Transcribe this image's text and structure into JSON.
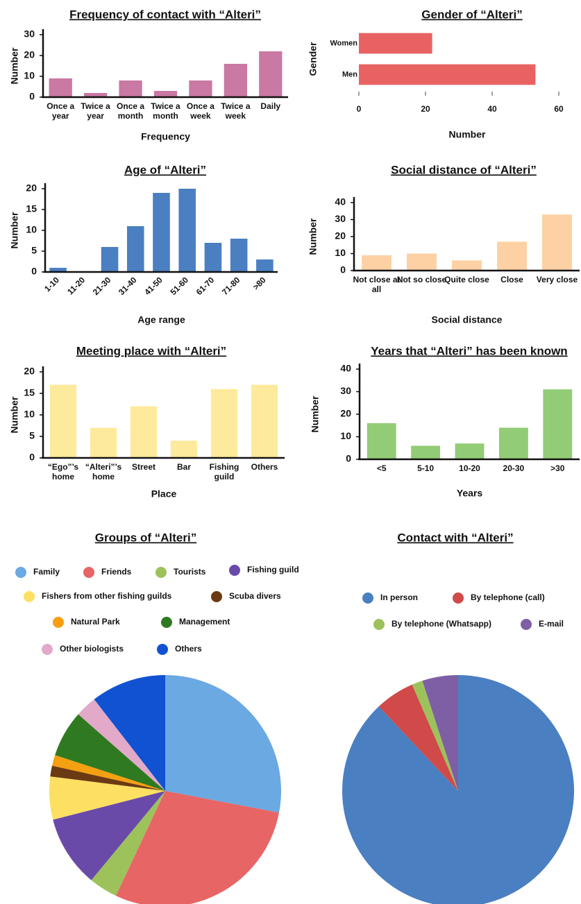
{
  "chart_data": [
    {
      "type": "bar",
      "title": "Frequency of contact with “Alteri”",
      "xlabel": "Frequency",
      "ylabel": "Number",
      "categories": [
        "Once a year",
        "Twice a year",
        "Once a month",
        "Twice a month",
        "Once a week",
        "Twice a week",
        "Daily"
      ],
      "values": [
        9,
        2,
        8,
        3,
        8,
        16,
        22
      ],
      "color": "#c979a3",
      "ylim": [
        0,
        30
      ],
      "yticks": [
        0,
        10,
        20,
        30
      ]
    },
    {
      "type": "barh",
      "title": "Gender of “Alteri”",
      "xlabel": "Number",
      "ylabel": "Gender",
      "categories": [
        "Women",
        "Men"
      ],
      "values": [
        22,
        53
      ],
      "color": "#e96262",
      "xlim": [
        0,
        65
      ],
      "xticks": [
        0,
        20,
        40,
        60
      ]
    },
    {
      "type": "bar",
      "title": "Age of “Alteri”",
      "xlabel": "Age range",
      "ylabel": "Number",
      "categories": [
        "1-10",
        "11-20",
        "21-30",
        "31-40",
        "41-50",
        "51-60",
        "61-70",
        "71-80",
        ">80"
      ],
      "values": [
        1,
        0,
        6,
        11,
        19,
        20,
        7,
        8,
        3
      ],
      "color": "#4a7fc1",
      "ylim": [
        0,
        20
      ],
      "yticks": [
        0,
        5,
        10,
        15,
        20
      ],
      "xtick_rotation": 45
    },
    {
      "type": "bar",
      "title": "Social distance of “Alteri”",
      "xlabel": "Social distance",
      "ylabel": "Number",
      "categories": [
        "Not close at all",
        "Not so close",
        "Quite close",
        "Close",
        "Very close"
      ],
      "values": [
        9,
        10,
        6,
        17,
        33
      ],
      "color": "#fdd1a4",
      "ylim": [
        0,
        40
      ],
      "yticks": [
        0,
        10,
        20,
        30,
        40
      ]
    },
    {
      "type": "bar",
      "title": "Meeting place with “Alteri”",
      "xlabel": "Place",
      "ylabel": "Number",
      "categories": [
        "“Ego”’s home",
        "“Alteri”’s home",
        "Street",
        "Bar",
        "Fishing guild",
        "Others"
      ],
      "values": [
        17,
        7,
        12,
        4,
        16,
        17
      ],
      "color": "#feea9c",
      "ylim": [
        0,
        20
      ],
      "yticks": [
        0,
        5,
        10,
        15,
        20
      ]
    },
    {
      "type": "bar",
      "title": "Years that “Alteri” has been known",
      "xlabel": "Years",
      "ylabel": "Number",
      "categories": [
        "<5",
        "5-10",
        "10-20",
        "20-30",
        ">30"
      ],
      "values": [
        16,
        6,
        7,
        14,
        31
      ],
      "color": "#92cc76",
      "ylim": [
        0,
        40
      ],
      "yticks": [
        0,
        10,
        20,
        30,
        40
      ]
    },
    {
      "type": "pie",
      "title": "Groups of “Alteri”",
      "categories": [
        "Family",
        "Friends",
        "Tourists",
        "Fishing guild",
        "Fishers from other fishing guilds",
        "Scuba divers",
        "Natural Park",
        "Management",
        "Other biologists",
        "Others"
      ],
      "values": [
        28,
        29,
        4,
        10,
        6,
        1.5,
        1.5,
        6.5,
        3,
        10.5
      ],
      "colors": [
        "#6aa9e2",
        "#e86565",
        "#9dc25b",
        "#6a4aa9",
        "#fde062",
        "#6b3a12",
        "#f5a011",
        "#2f7a21",
        "#e2a9c9",
        "#1152d2"
      ]
    },
    {
      "type": "pie",
      "title": "Contact with “Alteri”",
      "categories": [
        "In person",
        "By telephone (call)",
        "By telephone (Whatsapp)",
        "E-mail"
      ],
      "values": [
        88,
        5.5,
        1.5,
        5
      ],
      "colors": [
        "#4a7fc1",
        "#d04a4a",
        "#9dc25b",
        "#7e5fa6"
      ]
    }
  ]
}
